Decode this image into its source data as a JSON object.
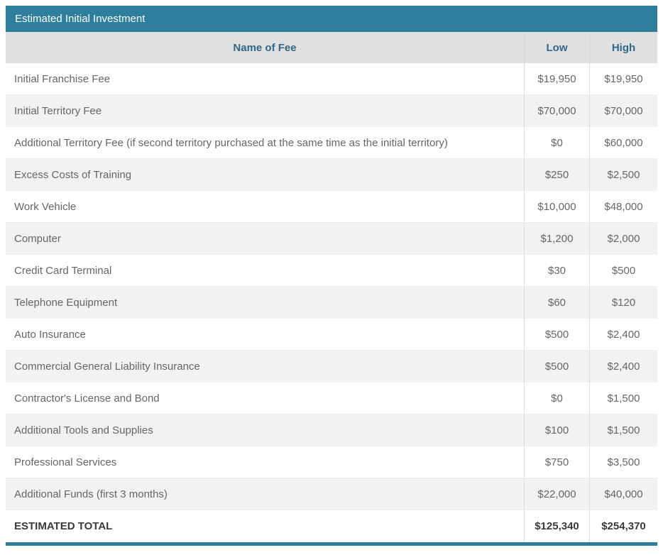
{
  "title": "Estimated Initial Investment",
  "colors": {
    "accent": "#2e7f9e",
    "header_row_bg": "#e0e0e0",
    "header_text": "#31688a",
    "alt_row_bg": "#f2f2f2",
    "body_text": "#666666"
  },
  "table": {
    "columns": {
      "name": "Name of Fee",
      "low": "Low",
      "high": "High"
    },
    "rows": [
      {
        "name": "Initial Franchise Fee",
        "low": "$19,950",
        "high": "$19,950"
      },
      {
        "name": "Initial Territory Fee",
        "low": "$70,000",
        "high": "$70,000"
      },
      {
        "name": "Additional Territory Fee (if second territory purchased at the same time as the initial territory)",
        "low": "$0",
        "high": "$60,000"
      },
      {
        "name": "Excess Costs of Training",
        "low": "$250",
        "high": "$2,500"
      },
      {
        "name": "Work Vehicle",
        "low": "$10,000",
        "high": "$48,000"
      },
      {
        "name": "Computer",
        "low": "$1,200",
        "high": "$2,000"
      },
      {
        "name": "Credit Card Terminal",
        "low": "$30",
        "high": "$500"
      },
      {
        "name": "Telephone Equipment",
        "low": "$60",
        "high": "$120"
      },
      {
        "name": "Auto Insurance",
        "low": "$500",
        "high": "$2,400"
      },
      {
        "name": "Commercial General Liability Insurance",
        "low": "$500",
        "high": "$2,400"
      },
      {
        "name": "Contractor's License and Bond",
        "low": "$0",
        "high": "$1,500"
      },
      {
        "name": "Additional Tools and Supplies",
        "low": "$100",
        "high": "$1,500"
      },
      {
        "name": "Professional Services",
        "low": "$750",
        "high": "$3,500"
      },
      {
        "name": "Additional Funds (first 3 months)",
        "low": "$22,000",
        "high": "$40,000"
      }
    ],
    "total": {
      "name": "ESTIMATED TOTAL",
      "low": "$125,340",
      "high": "$254,370"
    }
  }
}
